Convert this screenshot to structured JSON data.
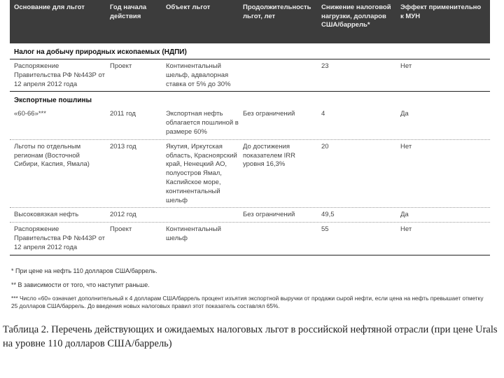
{
  "header": [
    "Основание для льгот",
    "Год начала действия",
    "Объект льгот",
    "Продолжительность льгот, лет",
    "Снижение налоговой нагрузки, долларов США/баррель*",
    "Эффект применительно к МУН"
  ],
  "sections": {
    "ndpi": "Налог на добычу природных ископаемых (НДПИ)",
    "export": "Экспортные пошлины"
  },
  "rows": [
    [
      "Распоряжение Правительства РФ №443Р от 12 апреля 2012 года",
      "Проект",
      "Континентальный шельф, адвалорная ставка от 5% до 30%",
      "",
      "23",
      "Нет"
    ],
    [
      "«60-66»***",
      "2011 год",
      "Экспортная нефть облагается пошлиной в размере 60%",
      "Без ограничений",
      "4",
      "Да"
    ],
    [
      "Льготы по отдельным регионам (Восточной Сибири, Каспия, Ямала)",
      "2013 год",
      "Якутия, Иркутская область, Красноярский край, Ненецкий АО, полуостров Ямал, Каспийское море, континентальный шельф",
      "До достижения показателем IRR уровня 16,3%",
      "20",
      "Нет"
    ],
    [
      "Высоковязкая нефть",
      "2012 год",
      "",
      "Без ограничений",
      "49,5",
      "Да"
    ],
    [
      "Распоряжение Правительства РФ №443Р от 12 апреля 2012 года",
      "Проект",
      "Континентальный шельф",
      "",
      "55",
      "Нет"
    ]
  ],
  "footnotes": [
    "* При цене на нефть 110 долларов США/баррель.",
    "** В зависимости от того, что наступит раньше.",
    "*** Число «60» означает дополнительный к 4 долларам США/баррель процент изъятия экспортной выручки от продажи сырой нефти, если цена на нефть превышает отметку 25 долларов США/баррель. До введения новых налоговых правил этот показатель составлял 65%."
  ],
  "caption": "Таблица 2. Перечень действующих и ожидаемых налоговых льгот в российской нефтяной отрасли (при цене Urals на уровне 110 долларов США/баррель)"
}
